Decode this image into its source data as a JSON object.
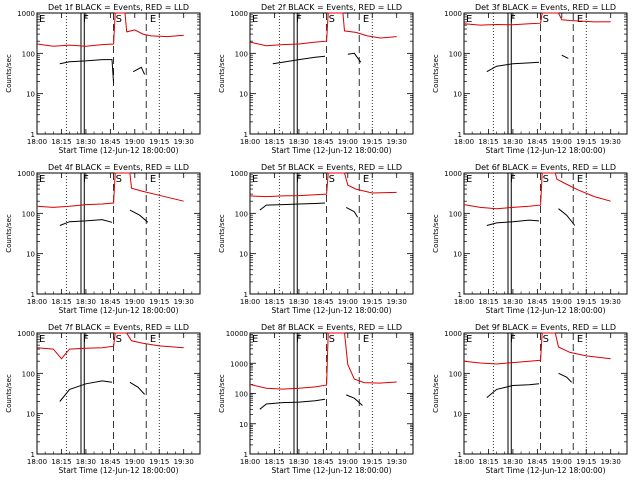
{
  "chart_data": {
    "type": "line",
    "xlabel": "Start Time (12-Jun-12 18:00:00)",
    "ylabel": "Counts/sec",
    "x_tick_labels": [
      "18:00",
      "18:15",
      "18:30",
      "18:45",
      "19:00",
      "19:15",
      "19:30"
    ],
    "x_ticks_min": [
      0,
      15,
      30,
      45,
      60,
      75,
      90
    ],
    "xlim_min": [
      0,
      100
    ],
    "y_tick_labels": [
      "1",
      "10",
      "100",
      "1000"
    ],
    "y_ticks": [
      1,
      10,
      100,
      1000
    ],
    "ylim": [
      1,
      1000
    ],
    "ylim_large": [
      1,
      10000
    ],
    "y_tick_labels_large": [
      "1",
      "10",
      "100",
      "1000",
      "10000"
    ],
    "y_ticks_large": [
      1,
      10,
      100,
      1000,
      10000
    ],
    "segment_labels": [
      "E",
      "F",
      "S",
      "E"
    ],
    "segment_label_x_min": [
      0,
      27,
      47,
      68
    ],
    "dotted_x_min": [
      18,
      75
    ],
    "solid_x_min": [
      27,
      29
    ],
    "dashed_x_min": [
      47,
      67
    ],
    "series_names": [
      "Events",
      "LLD"
    ],
    "series_colors": {
      "Events": "#000000",
      "LLD": "#dd0000"
    },
    "panels": [
      {
        "title": "Det 1f BLACK = Events, RED = LLD",
        "ymax": 1000,
        "lld": [
          [
            0,
            170
          ],
          [
            10,
            150
          ],
          [
            20,
            160
          ],
          [
            30,
            150
          ],
          [
            40,
            165
          ],
          [
            47,
            170
          ],
          [
            48,
            1000
          ],
          [
            54,
            1000
          ],
          [
            55,
            340
          ],
          [
            60,
            380
          ],
          [
            65,
            300
          ],
          [
            70,
            270
          ],
          [
            80,
            260
          ],
          [
            90,
            280
          ]
        ],
        "events": [
          [
            14,
            55
          ],
          [
            20,
            62
          ],
          [
            30,
            65
          ],
          [
            40,
            70
          ],
          [
            46,
            70
          ],
          [
            47,
            18
          ],
          null,
          [
            59,
            35
          ],
          [
            64,
            45
          ],
          [
            66,
            30
          ]
        ]
      },
      {
        "title": "Det 2f BLACK = Events, RED = LLD",
        "ymax": 1000,
        "lld": [
          [
            0,
            190
          ],
          [
            10,
            155
          ],
          [
            20,
            165
          ],
          [
            30,
            170
          ],
          [
            40,
            190
          ],
          [
            47,
            200
          ],
          [
            48,
            1000
          ],
          [
            57,
            1000
          ],
          [
            58,
            360
          ],
          [
            65,
            330
          ],
          [
            72,
            270
          ],
          [
            80,
            240
          ],
          [
            90,
            260
          ]
        ],
        "events": [
          [
            14,
            55
          ],
          [
            20,
            60
          ],
          [
            30,
            70
          ],
          [
            40,
            80
          ],
          [
            46,
            85
          ],
          null,
          [
            60,
            95
          ],
          [
            64,
            100
          ],
          [
            68,
            60
          ]
        ]
      },
      {
        "title": "Det 3f BLACK = Events, RED = LLD",
        "ymax": 1000,
        "lld": [
          [
            0,
            540
          ],
          [
            10,
            500
          ],
          [
            20,
            520
          ],
          [
            30,
            510
          ],
          [
            40,
            540
          ],
          [
            47,
            560
          ],
          [
            48,
            1000
          ],
          [
            58,
            1000
          ],
          [
            60,
            680
          ],
          [
            65,
            650
          ],
          [
            80,
            600
          ],
          [
            90,
            610
          ]
        ],
        "events": [
          [
            14,
            35
          ],
          [
            20,
            48
          ],
          [
            30,
            55
          ],
          [
            40,
            58
          ],
          [
            46,
            60
          ],
          null,
          [
            60,
            90
          ],
          [
            64,
            75
          ]
        ]
      },
      {
        "title": "Det 4f BLACK = Events, RED = LLD",
        "ymax": 1000,
        "lld": [
          [
            0,
            150
          ],
          [
            10,
            140
          ],
          [
            20,
            150
          ],
          [
            30,
            165
          ],
          [
            40,
            170
          ],
          [
            47,
            180
          ],
          [
            48,
            1000
          ],
          [
            57,
            1000
          ],
          [
            58,
            420
          ],
          [
            65,
            350
          ],
          [
            75,
            280
          ],
          [
            90,
            200
          ]
        ],
        "events": [
          [
            14,
            50
          ],
          [
            20,
            62
          ],
          [
            30,
            65
          ],
          [
            40,
            70
          ],
          [
            46,
            60
          ],
          null,
          [
            57,
            120
          ],
          [
            63,
            90
          ],
          [
            68,
            60
          ]
        ]
      },
      {
        "title": "Det 5f BLACK = Events, RED = LLD",
        "ymax": 1000,
        "lld": [
          [
            0,
            270
          ],
          [
            10,
            260
          ],
          [
            20,
            270
          ],
          [
            30,
            275
          ],
          [
            40,
            290
          ],
          [
            47,
            300
          ],
          [
            48,
            1000
          ],
          [
            58,
            1000
          ],
          [
            60,
            500
          ],
          [
            65,
            400
          ],
          [
            75,
            320
          ],
          [
            90,
            330
          ]
        ],
        "events": [
          [
            6,
            120
          ],
          [
            10,
            160
          ],
          [
            20,
            165
          ],
          [
            30,
            170
          ],
          [
            40,
            175
          ],
          [
            46,
            180
          ],
          null,
          [
            59,
            140
          ],
          [
            64,
            110
          ],
          [
            66,
            80
          ]
        ]
      },
      {
        "title": "Det 6f BLACK = Events, RED = LLD",
        "ymax": 1000,
        "lld": [
          [
            0,
            165
          ],
          [
            10,
            140
          ],
          [
            20,
            130
          ],
          [
            30,
            140
          ],
          [
            40,
            150
          ],
          [
            47,
            160
          ],
          [
            48,
            1000
          ],
          [
            56,
            1000
          ],
          [
            57,
            700
          ],
          [
            62,
            550
          ],
          [
            70,
            380
          ],
          [
            80,
            260
          ],
          [
            90,
            200
          ]
        ],
        "events": [
          [
            14,
            50
          ],
          [
            20,
            58
          ],
          [
            30,
            62
          ],
          [
            40,
            68
          ],
          [
            46,
            65
          ],
          null,
          [
            58,
            130
          ],
          [
            63,
            90
          ],
          [
            68,
            50
          ]
        ]
      },
      {
        "title": "Det 7f BLACK = Events, RED = LLD",
        "ymax": 1000,
        "lld": [
          [
            0,
            430
          ],
          [
            10,
            400
          ],
          [
            15,
            230
          ],
          [
            20,
            400
          ],
          [
            30,
            420
          ],
          [
            40,
            430
          ],
          [
            47,
            470
          ],
          [
            48,
            1000
          ],
          [
            55,
            1000
          ],
          [
            58,
            640
          ],
          [
            65,
            560
          ],
          [
            75,
            480
          ],
          [
            90,
            430
          ]
        ],
        "events": [
          [
            14,
            20
          ],
          [
            20,
            40
          ],
          [
            30,
            55
          ],
          [
            40,
            65
          ],
          [
            46,
            60
          ],
          null,
          [
            57,
            60
          ],
          [
            62,
            45
          ],
          [
            66,
            30
          ]
        ]
      },
      {
        "title": "Det 8f BLACK = Events, RED = LLD",
        "ymax": 10000,
        "lld": [
          [
            0,
            200
          ],
          [
            10,
            150
          ],
          [
            20,
            140
          ],
          [
            30,
            150
          ],
          [
            40,
            165
          ],
          [
            47,
            190
          ],
          [
            48,
            10000
          ],
          [
            58,
            10000
          ],
          [
            60,
            900
          ],
          [
            64,
            300
          ],
          [
            70,
            230
          ],
          [
            80,
            220
          ],
          [
            90,
            240
          ]
        ],
        "events": [
          [
            6,
            30
          ],
          [
            10,
            45
          ],
          [
            20,
            50
          ],
          [
            30,
            52
          ],
          [
            40,
            58
          ],
          [
            46,
            65
          ],
          null,
          [
            59,
            90
          ],
          [
            64,
            70
          ],
          [
            69,
            40
          ]
        ]
      },
      {
        "title": "Det 9f BLACK = Events, RED = LLD",
        "ymax": 1000,
        "lld": [
          [
            0,
            200
          ],
          [
            10,
            180
          ],
          [
            20,
            170
          ],
          [
            30,
            185
          ],
          [
            40,
            200
          ],
          [
            47,
            210
          ],
          [
            48,
            1000
          ],
          [
            56,
            1000
          ],
          [
            58,
            450
          ],
          [
            65,
            330
          ],
          [
            75,
            270
          ],
          [
            90,
            230
          ]
        ],
        "events": [
          [
            14,
            25
          ],
          [
            20,
            40
          ],
          [
            30,
            50
          ],
          [
            40,
            52
          ],
          [
            46,
            55
          ],
          null,
          [
            58,
            100
          ],
          [
            63,
            80
          ],
          [
            66,
            60
          ]
        ]
      }
    ]
  }
}
